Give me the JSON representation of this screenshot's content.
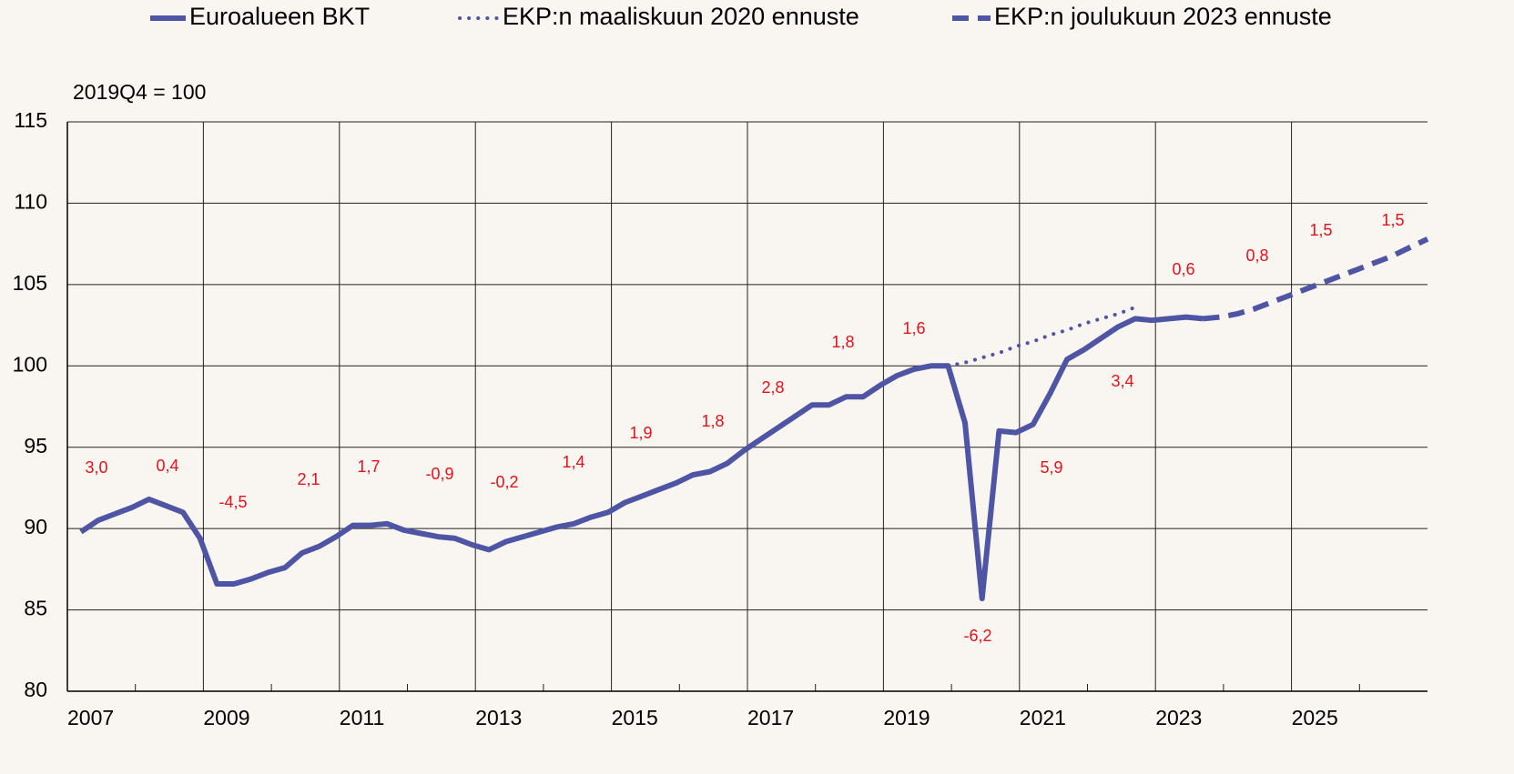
{
  "chart_data": {
    "type": "line",
    "unit_label": "2019Q4 = 100",
    "xlim": [
      2007,
      2027
    ],
    "xticks": [
      2007,
      2009,
      2011,
      2013,
      2015,
      2017,
      2019,
      2021,
      2023,
      2025
    ],
    "ylim": [
      80,
      115
    ],
    "yticks": [
      80,
      85,
      90,
      95,
      100,
      105,
      110,
      115
    ],
    "grid": true,
    "legend": "top",
    "series": [
      {
        "name": "Euroalueen BKT",
        "color": "#4e55a5",
        "style": "solid",
        "x": [
          2007.2,
          2007.45,
          2007.7,
          2007.95,
          2008.2,
          2008.45,
          2008.7,
          2008.95,
          2009.2,
          2009.45,
          2009.7,
          2009.95,
          2010.2,
          2010.45,
          2010.7,
          2010.95,
          2011.2,
          2011.45,
          2011.7,
          2011.95,
          2012.2,
          2012.45,
          2012.7,
          2012.95,
          2013.2,
          2013.45,
          2013.7,
          2013.95,
          2014.2,
          2014.45,
          2014.7,
          2014.95,
          2015.2,
          2015.45,
          2015.7,
          2015.95,
          2016.2,
          2016.45,
          2016.7,
          2016.95,
          2017.2,
          2017.45,
          2017.7,
          2017.95,
          2018.2,
          2018.45,
          2018.7,
          2018.95,
          2019.2,
          2019.45,
          2019.7,
          2019.95,
          2020.2,
          2020.45,
          2020.7,
          2020.95,
          2021.2,
          2021.45,
          2021.7,
          2021.95,
          2022.2,
          2022.45,
          2022.7,
          2022.95,
          2023.2,
          2023.45,
          2023.7
        ],
        "values": [
          89.8,
          90.5,
          90.9,
          91.3,
          91.8,
          91.4,
          91.0,
          89.4,
          86.6,
          86.6,
          86.9,
          87.3,
          87.6,
          88.5,
          88.9,
          89.5,
          90.2,
          90.2,
          90.3,
          89.9,
          89.7,
          89.5,
          89.4,
          89.0,
          88.7,
          89.2,
          89.5,
          89.8,
          90.1,
          90.3,
          90.7,
          91.0,
          91.6,
          92.0,
          92.4,
          92.8,
          93.3,
          93.5,
          94.0,
          94.8,
          95.5,
          96.2,
          96.9,
          97.6,
          97.6,
          98.1,
          98.1,
          98.8,
          99.4,
          99.8,
          100.0,
          100.0,
          96.5,
          85.7,
          96.0,
          95.9,
          96.4,
          98.3,
          100.4,
          101.0,
          101.7,
          102.4,
          102.9,
          102.8,
          102.9,
          103.0,
          102.9
        ]
      },
      {
        "name": "EKP:n maaliskuun 2020 ennuste",
        "color": "#4e55a5",
        "style": "dotted",
        "x": [
          2019.95,
          2020.2,
          2020.45,
          2020.7,
          2020.95,
          2021.2,
          2021.45,
          2021.7,
          2021.95,
          2022.2,
          2022.45,
          2022.7
        ],
        "values": [
          100.0,
          100.2,
          100.5,
          100.8,
          101.2,
          101.5,
          101.9,
          102.2,
          102.6,
          102.9,
          103.2,
          103.6
        ]
      },
      {
        "name": "EKP:n joulukuun 2023 ennuste",
        "color": "#4e55a5",
        "style": "dashed",
        "x": [
          2023.7,
          2023.95,
          2024.2,
          2024.45,
          2024.7,
          2024.95,
          2025.2,
          2025.45,
          2025.7,
          2025.95,
          2026.2,
          2026.45,
          2026.7,
          2027
        ],
        "values": [
          102.9,
          103.0,
          103.2,
          103.5,
          103.9,
          104.3,
          104.7,
          105.1,
          105.5,
          105.9,
          106.3,
          106.7,
          107.2,
          107.8
        ]
      }
    ],
    "growth_labels": [
      "3,0",
      "0,4",
      "-4,5",
      "2,1",
      "1,7",
      "-0,9",
      "-0,2",
      "1,4",
      "1,9",
      "1,8",
      "2,8",
      "1,8",
      "1,6",
      "-6,2",
      "5,9",
      "3,4",
      "0,6",
      "0,8",
      "1,5",
      "1,5"
    ]
  }
}
